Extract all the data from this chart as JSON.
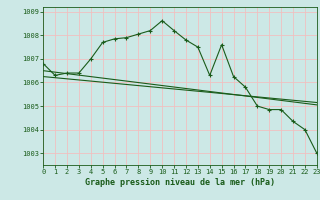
{
  "title": "Graphe pression niveau de la mer (hPa)",
  "background_color": "#cce8e6",
  "grid_color": "#f0c0c0",
  "line_color": "#1a5c1a",
  "xlim": [
    0,
    23
  ],
  "ylim": [
    1002.5,
    1009.2
  ],
  "xticks": [
    0,
    1,
    2,
    3,
    4,
    5,
    6,
    7,
    8,
    9,
    10,
    11,
    12,
    13,
    14,
    15,
    16,
    17,
    18,
    19,
    20,
    21,
    22,
    23
  ],
  "yticks": [
    1003,
    1004,
    1005,
    1006,
    1007,
    1008,
    1009
  ],
  "series1_x": [
    0,
    1,
    2,
    3,
    4,
    5,
    6,
    7,
    8,
    9,
    10,
    11,
    12,
    13,
    14,
    15,
    16,
    17,
    18,
    19,
    20,
    21,
    22,
    23
  ],
  "series1_y": [
    1006.8,
    1006.3,
    1006.4,
    1006.4,
    1007.0,
    1007.7,
    1007.85,
    1007.9,
    1008.05,
    1008.2,
    1008.62,
    1008.2,
    1007.8,
    1007.5,
    1006.3,
    1007.6,
    1006.25,
    1005.8,
    1005.0,
    1004.85,
    1004.85,
    1004.35,
    1004.0,
    1003.0
  ],
  "series2_x": [
    0,
    23
  ],
  "series2_y": [
    1006.5,
    1005.05
  ],
  "series3_x": [
    0,
    23
  ],
  "series3_y": [
    1006.25,
    1005.15
  ]
}
